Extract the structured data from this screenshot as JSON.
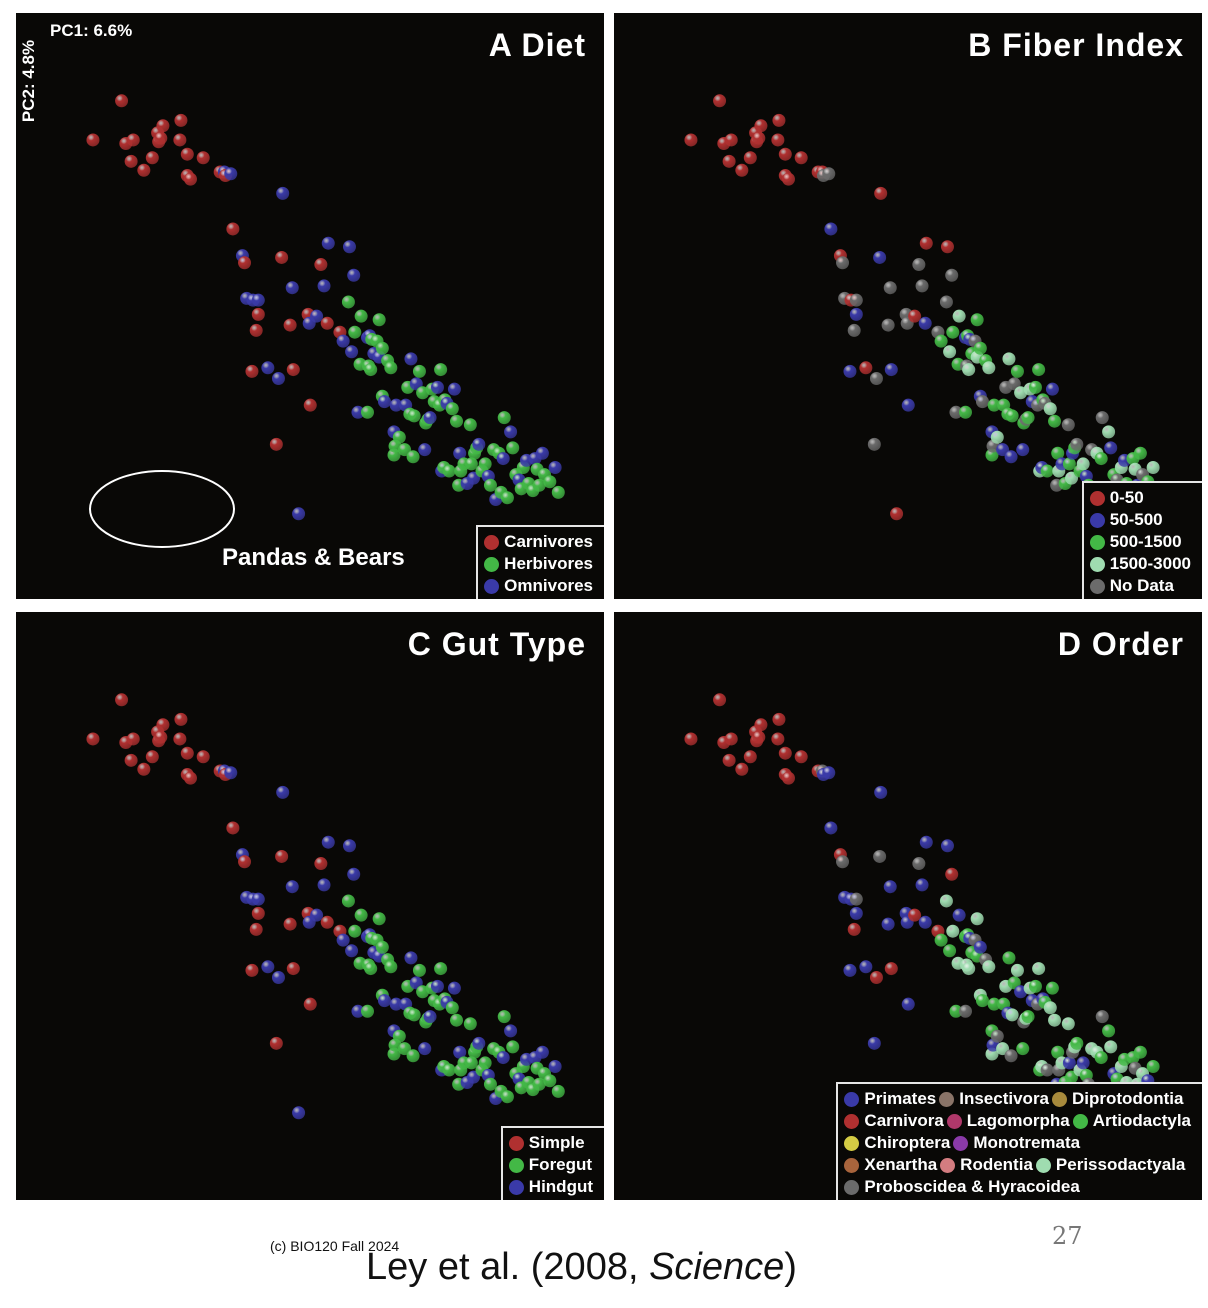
{
  "panels": [
    {
      "title": "A Diet",
      "x_axis_label": "PC1: 6.6%",
      "y_axis_label": "PC2: 4.8%",
      "annotation": "Pandas & Bears",
      "legend": [
        {
          "label": "Carnivores",
          "color": "#b03030"
        },
        {
          "label": "Herbivores",
          "color": "#43b846"
        },
        {
          "label": "Omnivores",
          "color": "#3a3aa8"
        }
      ]
    },
    {
      "title": "B Fiber Index",
      "legend": [
        {
          "label": "0-50",
          "color": "#b03030"
        },
        {
          "label": "50-500",
          "color": "#3a3aa8"
        },
        {
          "label": "500-1500",
          "color": "#43b846"
        },
        {
          "label": "1500-3000",
          "color": "#9fdcb0"
        },
        {
          "label": "No Data",
          "color": "#6b6b6b"
        }
      ]
    },
    {
      "title": "C Gut Type",
      "legend": [
        {
          "label": "Simple",
          "color": "#b03030"
        },
        {
          "label": "Foregut",
          "color": "#43b846"
        },
        {
          "label": "Hindgut",
          "color": "#3a3aa8"
        }
      ]
    },
    {
      "title": "D Order",
      "legend_rows": [
        [
          {
            "label": "Primates",
            "color": "#3a3aa8"
          },
          {
            "label": "Insectivora",
            "color": "#8a7468"
          },
          {
            "label": "Diprotodontia",
            "color": "#a88a3c"
          }
        ],
        [
          {
            "label": "Carnivora",
            "color": "#b03030"
          },
          {
            "label": "Lagomorpha",
            "color": "#b0386a"
          },
          {
            "label": "Artiodactyla",
            "color": "#43b846"
          }
        ],
        [
          {
            "label": "Chiroptera",
            "color": "#d4cc44"
          },
          {
            "label": "Monotremata",
            "color": "#8a3aa8"
          }
        ],
        [
          {
            "label": "Xenartha",
            "color": "#a8643c"
          },
          {
            "label": "Rodentia",
            "color": "#d47c80"
          },
          {
            "label": "Perissodactyala",
            "color": "#9fdcb0"
          }
        ],
        [
          {
            "label": "Proboscidea & Hyracoidea",
            "color": "#6b6b6b"
          }
        ]
      ]
    }
  ],
  "chart_data": {
    "type": "scatter",
    "xlabel": "PC1: 6.6%",
    "ylabel": "PC2: 4.8%",
    "grid": false,
    "shared_points": [
      [
        16,
        32
      ],
      [
        43,
        10
      ],
      [
        47,
        34
      ],
      [
        54,
        32
      ],
      [
        52,
        44
      ],
      [
        64,
        49
      ],
      [
        72,
        42
      ],
      [
        77,
        28
      ],
      [
        78,
        33
      ],
      [
        80,
        31
      ],
      [
        82,
        24
      ],
      [
        98,
        32
      ],
      [
        99,
        21
      ],
      [
        105,
        40
      ],
      [
        105,
        52
      ],
      [
        108,
        54
      ],
      [
        120,
        42
      ],
      [
        136,
        50
      ],
      [
        140,
        50
      ],
      [
        141,
        52
      ],
      [
        146,
        51
      ],
      [
        148,
        82
      ],
      [
        157,
        97
      ],
      [
        159,
        101
      ],
      [
        161,
        121
      ],
      [
        166,
        162
      ],
      [
        167,
        122
      ],
      [
        170,
        139
      ],
      [
        172,
        122
      ],
      [
        172,
        130
      ],
      [
        181,
        160
      ],
      [
        189,
        203
      ],
      [
        191,
        166
      ],
      [
        194,
        98
      ],
      [
        195,
        62
      ],
      [
        202,
        136
      ],
      [
        204,
        115
      ],
      [
        205,
        161
      ],
      [
        210,
        242
      ],
      [
        219,
        130
      ],
      [
        220,
        135
      ],
      [
        221,
        181
      ],
      [
        227,
        131
      ],
      [
        231,
        102
      ],
      [
        234,
        114
      ],
      [
        237,
        135
      ],
      [
        238,
        90
      ],
      [
        249,
        140
      ],
      [
        252,
        145
      ],
      [
        257,
        123
      ],
      [
        258,
        92
      ],
      [
        260,
        151
      ],
      [
        262,
        108
      ],
      [
        263,
        140
      ],
      [
        266,
        185
      ],
      [
        268,
        158
      ],
      [
        269,
        131
      ],
      [
        275,
        143
      ],
      [
        275,
        185
      ],
      [
        276,
        159
      ],
      [
        277,
        142
      ],
      [
        278,
        161
      ],
      [
        279,
        144
      ],
      [
        281,
        152
      ],
      [
        284,
        145
      ],
      [
        286,
        133
      ],
      [
        286,
        154
      ],
      [
        289,
        176
      ],
      [
        289,
        149
      ],
      [
        291,
        179
      ],
      [
        294,
        156
      ],
      [
        297,
        160
      ],
      [
        300,
        196
      ],
      [
        300,
        209
      ],
      [
        301,
        204
      ],
      [
        302,
        181
      ],
      [
        305,
        199
      ],
      [
        310,
        206
      ],
      [
        311,
        181
      ],
      [
        313,
        171
      ],
      [
        315,
        186
      ],
      [
        316,
        155
      ],
      [
        318,
        210
      ],
      [
        319,
        187
      ],
      [
        321,
        169
      ],
      [
        324,
        162
      ],
      [
        327,
        174
      ],
      [
        329,
        206
      ],
      [
        330,
        191
      ],
      [
        332,
        189
      ],
      [
        334,
        188
      ],
      [
        336,
        172
      ],
      [
        338,
        179
      ],
      [
        341,
        171
      ],
      [
        343,
        181
      ],
      [
        344,
        161
      ],
      [
        345,
        218
      ],
      [
        347,
        216
      ],
      [
        348,
        178
      ],
      [
        350,
        180
      ],
      [
        352,
        218
      ],
      [
        355,
        183
      ],
      [
        357,
        172
      ],
      [
        359,
        190
      ],
      [
        361,
        226
      ],
      [
        362,
        208
      ],
      [
        363,
        218
      ],
      [
        366,
        214
      ],
      [
        369,
        225
      ],
      [
        372,
        192
      ],
      [
        373,
        214
      ],
      [
        375,
        222
      ],
      [
        376,
        208
      ],
      [
        378,
        205
      ],
      [
        380,
        203
      ],
      [
        383,
        218
      ],
      [
        386,
        214
      ],
      [
        389,
        221
      ],
      [
        391,
        226
      ],
      [
        394,
        206
      ],
      [
        396,
        234
      ],
      [
        399,
        208
      ],
      [
        401,
        230
      ],
      [
        403,
        211
      ],
      [
        404,
        188
      ],
      [
        407,
        233
      ],
      [
        410,
        196
      ],
      [
        412,
        205
      ],
      [
        415,
        220
      ],
      [
        418,
        223
      ],
      [
        420,
        228
      ],
      [
        422,
        216
      ],
      [
        425,
        212
      ],
      [
        427,
        225
      ],
      [
        431,
        229
      ],
      [
        433,
        211
      ],
      [
        435,
        217
      ],
      [
        437,
        226
      ],
      [
        440,
        208
      ],
      [
        442,
        220
      ],
      [
        447,
        224
      ],
      [
        452,
        216
      ],
      [
        455,
        230
      ]
    ]
  },
  "footer": {
    "copyright": "(c) BIO120 Fall 2024",
    "citation_prefix": "Ley et al. (2008, ",
    "citation_journal": "Science",
    "citation_suffix": ")",
    "page_number": "27"
  }
}
